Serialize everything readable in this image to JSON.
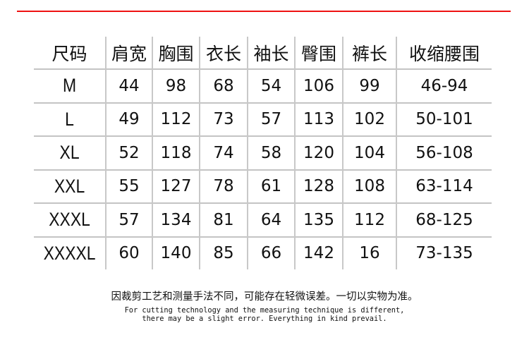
{
  "colors": {
    "accent_line": "#ee1111",
    "grid": "#c4c4c4"
  },
  "table": {
    "headers": [
      "尺码",
      "肩宽",
      "胸围",
      "衣长",
      "袖长",
      "臀围",
      "裤长",
      "收缩腰围"
    ],
    "rows": [
      [
        "M",
        "44",
        "98",
        "68",
        "54",
        "106",
        "99",
        "46-94"
      ],
      [
        "L",
        "49",
        "112",
        "73",
        "57",
        "113",
        "102",
        "50-101"
      ],
      [
        "XL",
        "52",
        "118",
        "74",
        "58",
        "120",
        "104",
        "56-108"
      ],
      [
        "XXL",
        "55",
        "127",
        "78",
        "61",
        "128",
        "108",
        "63-114"
      ],
      [
        "XXXL",
        "57",
        "134",
        "81",
        "64",
        "135",
        "112",
        "68-125"
      ],
      [
        "XXXXL",
        "60",
        "140",
        "85",
        "66",
        "142",
        "16",
        "73-135"
      ]
    ]
  },
  "note": {
    "cn": "因裁剪工艺和测量手法不同，可能存在轻微误差。一切以实物为准。",
    "en_line1": "For cutting technology and the measuring technique is different,",
    "en_line2": "there may be a slight error. Everything in kind prevail."
  }
}
